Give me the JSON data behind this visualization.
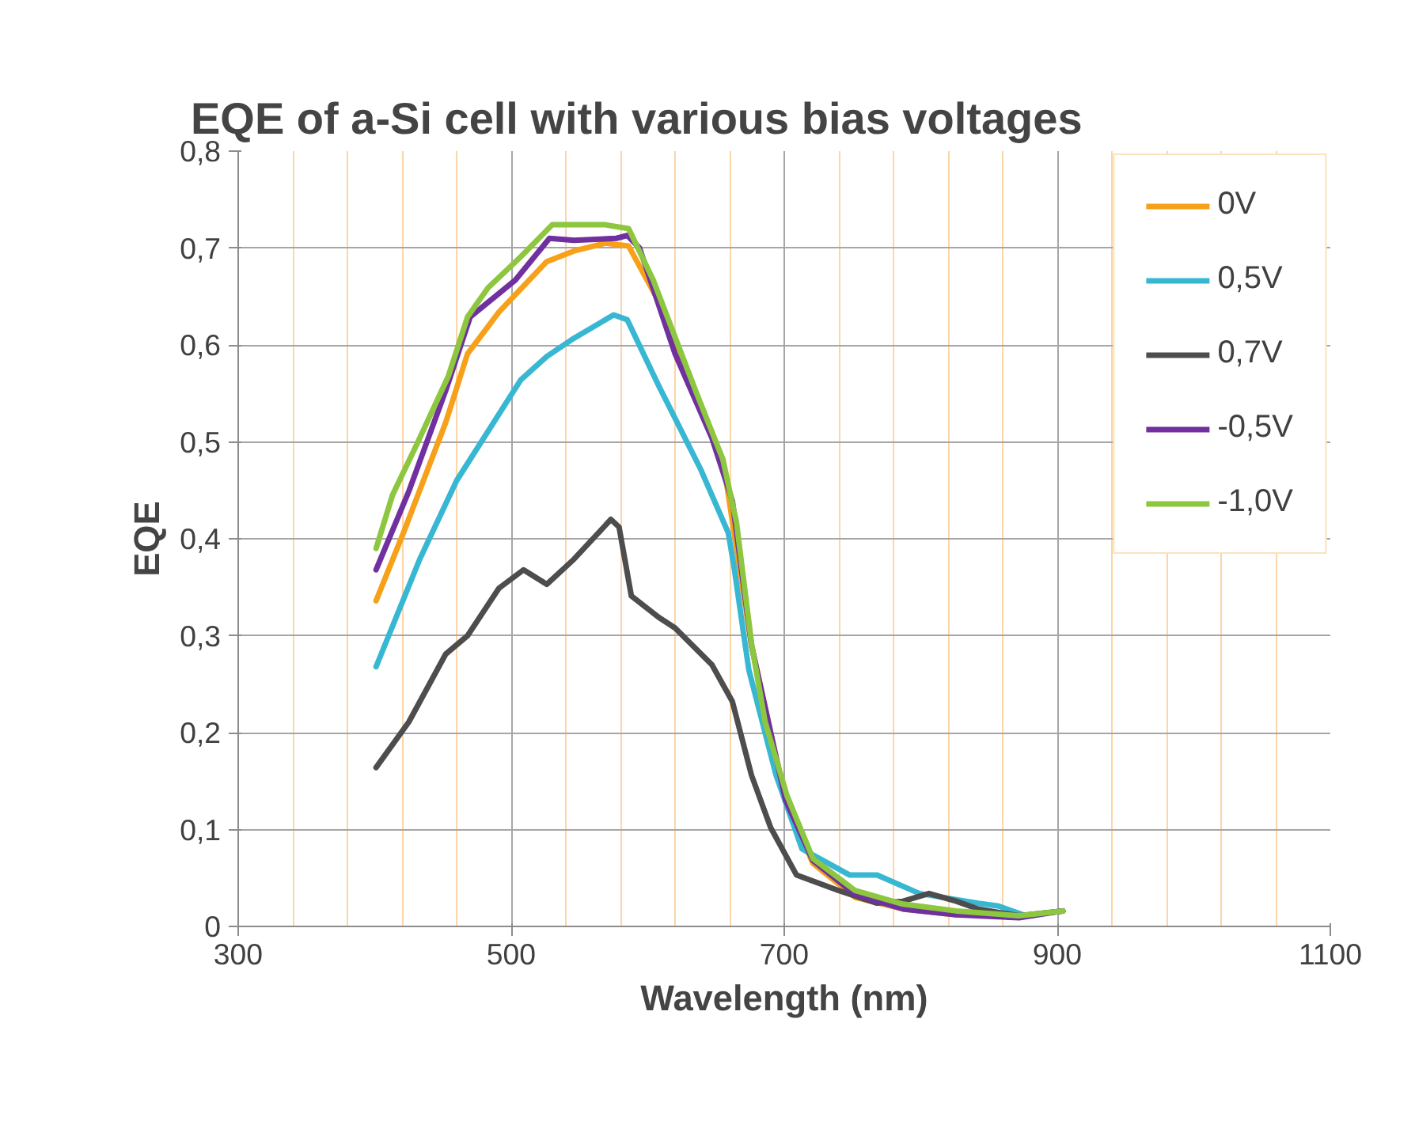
{
  "chart_data": {
    "type": "line",
    "title": "EQE of a-Si cell with various bias voltages",
    "xlabel": "Wavelength (nm)",
    "ylabel": "EQE",
    "xlim": [
      300,
      1100
    ],
    "xticks": [
      300,
      {
        "value": 340,
        "label": null
      },
      {
        "value": 380,
        "label": null
      },
      {
        "value": 420,
        "label": null
      },
      {
        "value": 460,
        "label": null
      },
      500,
      {
        "value": 540,
        "label": null
      },
      {
        "value": 580,
        "label": null
      },
      {
        "value": 620,
        "label": null
      },
      {
        "value": 660,
        "label": null
      },
      700,
      {
        "value": 740,
        "label": null
      },
      {
        "value": 780,
        "label": null
      },
      {
        "value": 820,
        "label": null
      },
      {
        "value": 860,
        "label": null
      },
      900,
      {
        "value": 940,
        "label": null
      },
      {
        "value": 980,
        "label": null
      },
      {
        "value": 1020,
        "label": null
      },
      {
        "value": 1060,
        "label": null
      },
      1100
    ],
    "ylim": [
      0,
      0.8
    ],
    "yticks": [
      {
        "value": 0,
        "label": "0"
      },
      {
        "value": 0.1,
        "label": "0,1"
      },
      {
        "value": 0.2,
        "label": "0,2"
      },
      {
        "value": 0.3,
        "label": "0,3"
      },
      {
        "value": 0.4,
        "label": "0,4"
      },
      {
        "value": 0.5,
        "label": "0,5"
      },
      {
        "value": 0.6,
        "label": "0,6"
      },
      {
        "value": 0.7,
        "label": "0,7"
      },
      {
        "value": 0.8,
        "label": "0,8"
      }
    ],
    "grid": true,
    "legend": "top right",
    "marker": "none",
    "line_style": "solid",
    "series": [
      {
        "name": "0V",
        "color": "#f7a11a",
        "x": [
          401,
          421,
          452,
          468,
          491,
          526,
          546,
          569,
          586,
          608,
          635,
          655,
          676,
          701,
          721,
          752,
          787,
          826
        ],
        "values": [
          0.336,
          0.406,
          0.52,
          0.591,
          0.634,
          0.686,
          0.697,
          0.705,
          0.702,
          0.645,
          0.547,
          0.482,
          0.29,
          0.13,
          0.065,
          0.03,
          0.018,
          0.012
        ]
      },
      {
        "name": "0,5V",
        "color": "#38b7d3",
        "x": [
          401,
          433,
          460,
          507,
          526,
          546,
          575,
          585,
          608,
          639,
          659,
          663,
          674,
          694,
          713,
          748,
          768,
          799,
          842,
          857,
          877,
          904
        ],
        "values": [
          0.268,
          0.379,
          0.46,
          0.564,
          0.588,
          0.607,
          0.631,
          0.626,
          0.558,
          0.471,
          0.406,
          0.373,
          0.265,
          0.156,
          0.08,
          0.053,
          0.053,
          0.034,
          0.024,
          0.021,
          0.011,
          0.016
        ]
      },
      {
        "name": "0,7V",
        "color": "#4d4d4d",
        "x": [
          401,
          425,
          452,
          468,
          491,
          509,
          526,
          546,
          573,
          579,
          588,
          608,
          620,
          647,
          662,
          676,
          690,
          709,
          740,
          768,
          787,
          806,
          826,
          842,
          872,
          904
        ],
        "values": [
          0.164,
          0.211,
          0.281,
          0.3,
          0.349,
          0.368,
          0.353,
          0.379,
          0.42,
          0.412,
          0.341,
          0.319,
          0.308,
          0.27,
          0.232,
          0.156,
          0.102,
          0.053,
          0.037,
          0.024,
          0.026,
          0.034,
          0.026,
          0.018,
          0.011,
          0.016
        ]
      },
      {
        "name": "-0,5V",
        "color": "#7030a0",
        "x": [
          401,
          425,
          452,
          470,
          503,
          528,
          546,
          577,
          585,
          594,
          620,
          647,
          662,
          676,
          701,
          721,
          752,
          787,
          826,
          872,
          904
        ],
        "values": [
          0.368,
          0.449,
          0.553,
          0.629,
          0.667,
          0.71,
          0.708,
          0.71,
          0.713,
          0.7,
          0.591,
          0.504,
          0.439,
          0.29,
          0.13,
          0.068,
          0.033,
          0.018,
          0.012,
          0.009,
          0.016
        ]
      },
      {
        "name": "-1,0V",
        "color": "#8dc63f",
        "x": [
          401,
          413,
          431,
          454,
          468,
          483,
          507,
          530,
          569,
          586,
          604,
          635,
          655,
          665,
          676,
          686,
          702,
          721,
          752,
          787,
          826,
          872,
          904
        ],
        "values": [
          0.39,
          0.445,
          0.498,
          0.568,
          0.629,
          0.659,
          0.691,
          0.724,
          0.724,
          0.72,
          0.667,
          0.553,
          0.482,
          0.417,
          0.292,
          0.211,
          0.135,
          0.07,
          0.037,
          0.023,
          0.016,
          0.011,
          0.016
        ]
      }
    ]
  }
}
